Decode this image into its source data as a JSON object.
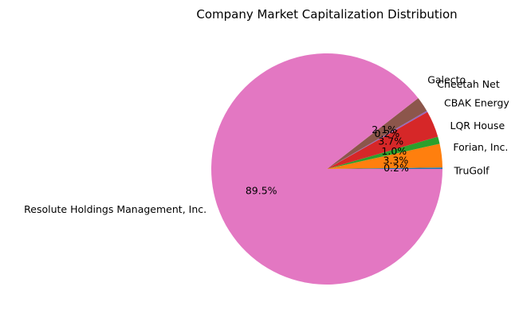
{
  "chart_data": {
    "type": "pie",
    "title": "Company Market Capitalization Distribution",
    "start_angle_deg": 0,
    "direction": "counterclockwise",
    "slices": [
      {
        "label": "TruGolf",
        "percent": 0.2,
        "percent_label": "0.2%",
        "color": "#1f77b4"
      },
      {
        "label": "Forian, Inc.",
        "percent": 3.3,
        "percent_label": "3.3%",
        "color": "#ff7f0e"
      },
      {
        "label": "LQR House",
        "percent": 1.0,
        "percent_label": "1.0%",
        "color": "#2ca02c"
      },
      {
        "label": "CBAK Energy",
        "percent": 3.7,
        "percent_label": "3.7%",
        "color": "#d62728"
      },
      {
        "label": "Cheetah Net",
        "percent": 0.2,
        "percent_label": "0.2%",
        "color": "#9467bd"
      },
      {
        "label": "Galecto",
        "percent": 2.1,
        "percent_label": "2.1%",
        "color": "#8c564b"
      },
      {
        "label": "Resolute Holdings Management, Inc.",
        "percent": 89.5,
        "percent_label": "89.5%",
        "color": "#e377c2"
      }
    ]
  }
}
